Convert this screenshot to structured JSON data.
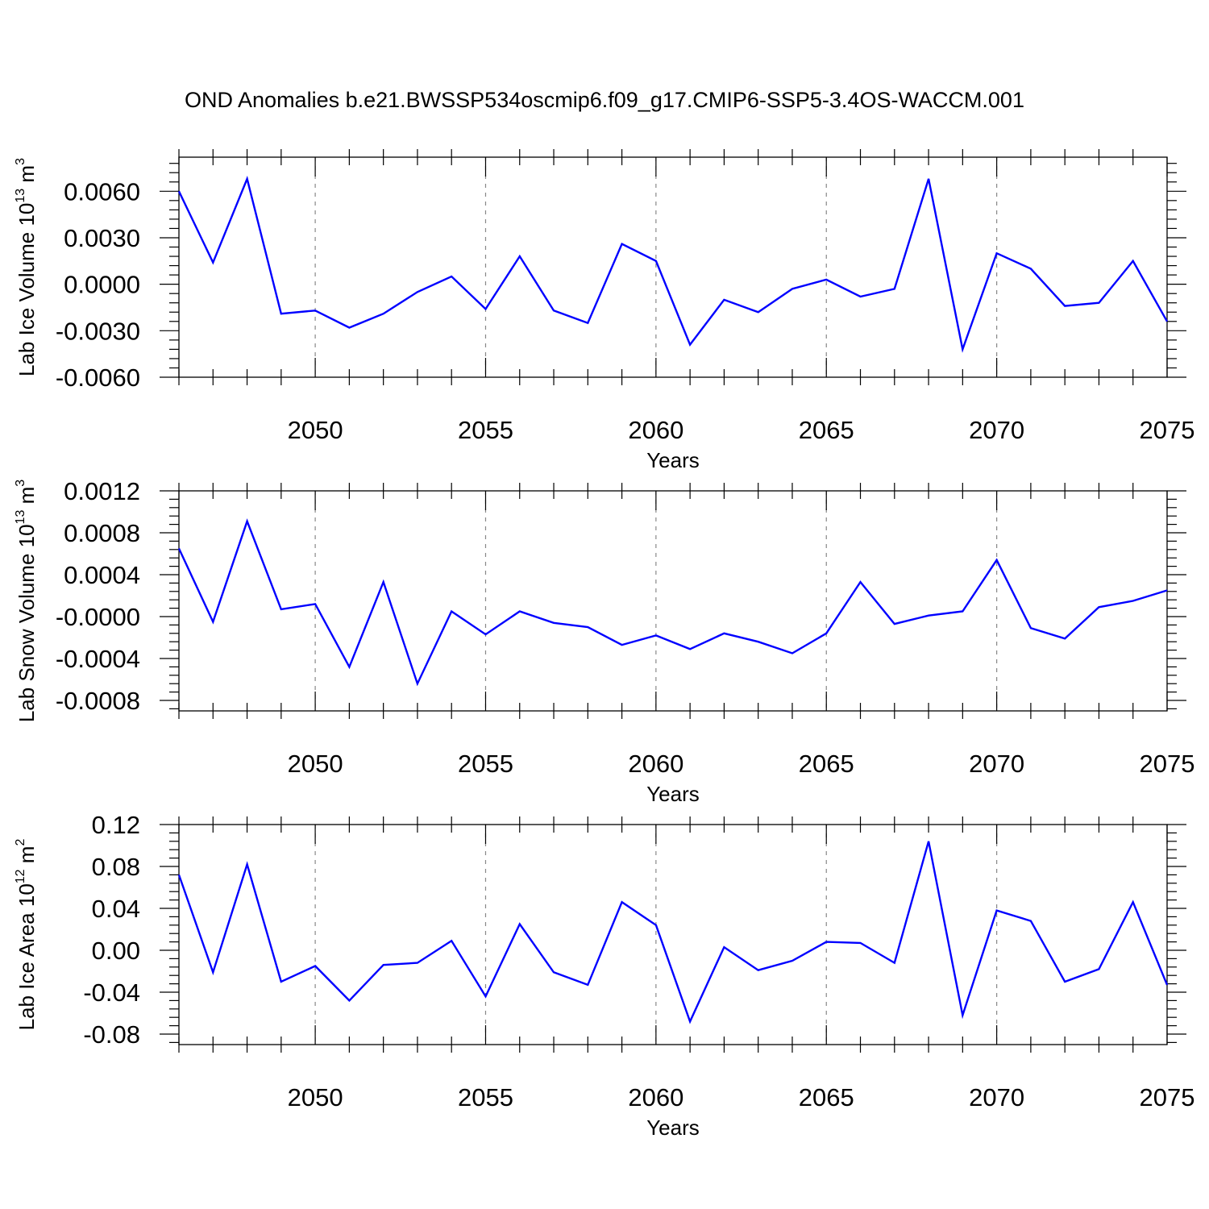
{
  "title": "OND Anomalies b.e21.BWSSP534oscmip6.f09_g17.CMIP6-SSP5-3.4OS-WACCM.001",
  "colors": {
    "line": "#0000ff",
    "grid": "#888888",
    "frame": "#000000"
  },
  "chart_data": [
    {
      "type": "line",
      "xlabel": "Years",
      "ylabel_main": "Lab Ice Volume 10",
      "ylabel_exp": "13",
      "ylabel_unit": " m",
      "ylabel_unit_exp": "3",
      "xlim": [
        2046,
        2075
      ],
      "ylim": [
        -0.006,
        0.0082
      ],
      "xticks": [
        2050,
        2055,
        2060,
        2065,
        2070,
        2075
      ],
      "xtick_labels": [
        "2050",
        "2055",
        "2060",
        "2065",
        "2070",
        "2075"
      ],
      "yticks": [
        -0.006,
        -0.003,
        0.0,
        0.003,
        0.006
      ],
      "ytick_labels": [
        "-0.0060",
        "-0.0030",
        "0.0000",
        "0.0030",
        "0.0060"
      ],
      "grid": "vertical dashed at major x ticks",
      "x": [
        2046,
        2047,
        2048,
        2049,
        2050,
        2051,
        2052,
        2053,
        2054,
        2055,
        2056,
        2057,
        2058,
        2059,
        2060,
        2061,
        2062,
        2063,
        2064,
        2065,
        2066,
        2067,
        2068,
        2069,
        2070,
        2071,
        2072,
        2073,
        2074,
        2075
      ],
      "series": [
        {
          "values": [
            0.006,
            0.0014,
            0.0068,
            -0.0019,
            -0.0017,
            -0.0028,
            -0.0019,
            -0.0005,
            0.0005,
            -0.0016,
            0.0018,
            -0.0017,
            -0.0025,
            0.0026,
            0.0015,
            -0.0039,
            -0.001,
            -0.0018,
            -0.0003,
            0.0003,
            -0.0008,
            -0.0003,
            0.0068,
            -0.0042,
            0.002,
            0.001,
            -0.0014,
            -0.0012,
            0.0015,
            -0.0024
          ]
        }
      ]
    },
    {
      "type": "line",
      "xlabel": "Years",
      "ylabel_main": "Lab Snow Volume 10",
      "ylabel_exp": "13",
      "ylabel_unit": " m",
      "ylabel_unit_exp": "3",
      "xlim": [
        2046,
        2075
      ],
      "ylim": [
        -0.0009,
        0.0012
      ],
      "xticks": [
        2050,
        2055,
        2060,
        2065,
        2070,
        2075
      ],
      "xtick_labels": [
        "2050",
        "2055",
        "2060",
        "2065",
        "2070",
        "2075"
      ],
      "yticks": [
        -0.0008,
        -0.0004,
        0.0,
        0.0004,
        0.0008,
        0.0012
      ],
      "ytick_labels": [
        "-0.0008",
        "-0.0004",
        "-0.0000",
        "0.0004",
        "0.0008",
        "0.0012"
      ],
      "grid": "vertical dashed at major x ticks",
      "x": [
        2046,
        2047,
        2048,
        2049,
        2050,
        2051,
        2052,
        2053,
        2054,
        2055,
        2056,
        2057,
        2058,
        2059,
        2060,
        2061,
        2062,
        2063,
        2064,
        2065,
        2066,
        2067,
        2068,
        2069,
        2070,
        2071,
        2072,
        2073,
        2074,
        2075
      ],
      "series": [
        {
          "values": [
            0.00065,
            -5e-05,
            0.00091,
            7e-05,
            0.00012,
            -0.00048,
            0.00033,
            -0.00064,
            5e-05,
            -0.00017,
            5e-05,
            -6e-05,
            -0.0001,
            -0.00027,
            -0.00018,
            -0.00031,
            -0.00016,
            -0.00024,
            -0.00035,
            -0.00016,
            0.00033,
            -7e-05,
            1e-05,
            5e-05,
            0.00054,
            -0.00011,
            -0.00021,
            9e-05,
            0.00015,
            0.00025
          ]
        }
      ]
    },
    {
      "type": "line",
      "xlabel": "Years",
      "ylabel_main": "Lab Ice Area 10",
      "ylabel_exp": "12",
      "ylabel_unit": " m",
      "ylabel_unit_exp": "2",
      "xlim": [
        2046,
        2075
      ],
      "ylim": [
        -0.09,
        0.12
      ],
      "xticks": [
        2050,
        2055,
        2060,
        2065,
        2070,
        2075
      ],
      "xtick_labels": [
        "2050",
        "2055",
        "2060",
        "2065",
        "2070",
        "2075"
      ],
      "yticks": [
        -0.08,
        -0.04,
        0.0,
        0.04,
        0.08,
        0.12
      ],
      "ytick_labels": [
        "-0.08",
        "-0.04",
        "0.00",
        "0.04",
        "0.08",
        "0.12"
      ],
      "grid": "vertical dashed at major x ticks",
      "x": [
        2046,
        2047,
        2048,
        2049,
        2050,
        2051,
        2052,
        2053,
        2054,
        2055,
        2056,
        2057,
        2058,
        2059,
        2060,
        2061,
        2062,
        2063,
        2064,
        2065,
        2066,
        2067,
        2068,
        2069,
        2070,
        2071,
        2072,
        2073,
        2074,
        2075
      ],
      "series": [
        {
          "values": [
            0.072,
            -0.021,
            0.082,
            -0.03,
            -0.015,
            -0.048,
            -0.014,
            -0.012,
            0.009,
            -0.044,
            0.025,
            -0.021,
            -0.033,
            0.046,
            0.024,
            -0.068,
            0.003,
            -0.019,
            -0.01,
            0.008,
            0.007,
            -0.012,
            0.104,
            -0.062,
            0.038,
            0.028,
            -0.03,
            -0.018,
            0.046,
            -0.033
          ]
        }
      ]
    }
  ]
}
